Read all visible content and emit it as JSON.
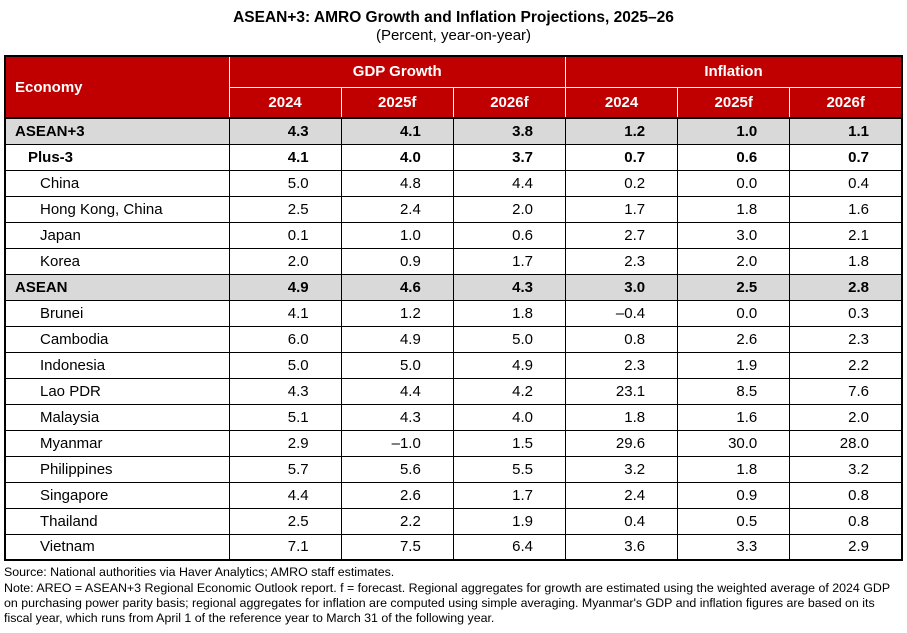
{
  "title": "ASEAN+3: AMRO Growth and Inflation Projections, 2025–26",
  "subtitle": "(Percent, year-on-year)",
  "colors": {
    "header_bg": "#C00000",
    "header_text": "#FFFFFF",
    "aggregate_row_bg": "#D9D9D9",
    "border": "#000000"
  },
  "table": {
    "corner_header": "Economy",
    "group_headers": [
      "GDP Growth",
      "Inflation"
    ],
    "year_headers": [
      "2024",
      "2025f",
      "2026f",
      "2024",
      "2025f",
      "2026f"
    ],
    "rows": [
      {
        "economy": "ASEAN+3",
        "style": "aggregate",
        "indent": 0,
        "values": [
          "4.3",
          "4.1",
          "3.8",
          "1.2",
          "1.0",
          "1.1"
        ]
      },
      {
        "economy": "Plus-3",
        "style": "subtotal",
        "indent": 1,
        "values": [
          "4.1",
          "4.0",
          "3.7",
          "0.7",
          "0.6",
          "0.7"
        ]
      },
      {
        "economy": "China",
        "style": "member",
        "indent": 2,
        "values": [
          "5.0",
          "4.8",
          "4.4",
          "0.2",
          "0.0",
          "0.4"
        ]
      },
      {
        "economy": "Hong Kong, China",
        "style": "member",
        "indent": 2,
        "values": [
          "2.5",
          "2.4",
          "2.0",
          "1.7",
          "1.8",
          "1.6"
        ]
      },
      {
        "economy": "Japan",
        "style": "member",
        "indent": 2,
        "values": [
          "0.1",
          "1.0",
          "0.6",
          "2.7",
          "3.0",
          "2.1"
        ]
      },
      {
        "economy": "Korea",
        "style": "member",
        "indent": 2,
        "values": [
          "2.0",
          "0.9",
          "1.7",
          "2.3",
          "2.0",
          "1.8"
        ]
      },
      {
        "economy": "ASEAN",
        "style": "aggregate",
        "indent": 0,
        "values": [
          "4.9",
          "4.6",
          "4.3",
          "3.0",
          "2.5",
          "2.8"
        ]
      },
      {
        "economy": "Brunei",
        "style": "member",
        "indent": 2,
        "values": [
          "4.1",
          "1.2",
          "1.8",
          "–0.4",
          "0.0",
          "0.3"
        ]
      },
      {
        "economy": "Cambodia",
        "style": "member",
        "indent": 2,
        "values": [
          "6.0",
          "4.9",
          "5.0",
          "0.8",
          "2.6",
          "2.3"
        ]
      },
      {
        "economy": "Indonesia",
        "style": "member",
        "indent": 2,
        "values": [
          "5.0",
          "5.0",
          "4.9",
          "2.3",
          "1.9",
          "2.2"
        ]
      },
      {
        "economy": "Lao PDR",
        "style": "member",
        "indent": 2,
        "values": [
          "4.3",
          "4.4",
          "4.2",
          "23.1",
          "8.5",
          "7.6"
        ]
      },
      {
        "economy": "Malaysia",
        "style": "member",
        "indent": 2,
        "values": [
          "5.1",
          "4.3",
          "4.0",
          "1.8",
          "1.6",
          "2.0"
        ]
      },
      {
        "economy": "Myanmar",
        "style": "member",
        "indent": 2,
        "values": [
          "2.9",
          "–1.0",
          "1.5",
          "29.6",
          "30.0",
          "28.0"
        ]
      },
      {
        "economy": "Philippines",
        "style": "member",
        "indent": 2,
        "values": [
          "5.7",
          "5.6",
          "5.5",
          "3.2",
          "1.8",
          "3.2"
        ]
      },
      {
        "economy": "Singapore",
        "style": "member",
        "indent": 2,
        "values": [
          "4.4",
          "2.6",
          "1.7",
          "2.4",
          "0.9",
          "0.8"
        ]
      },
      {
        "economy": "Thailand",
        "style": "member",
        "indent": 2,
        "values": [
          "2.5",
          "2.2",
          "1.9",
          "0.4",
          "0.5",
          "0.8"
        ]
      },
      {
        "economy": "Vietnam",
        "style": "member",
        "indent": 2,
        "values": [
          "7.1",
          "7.5",
          "6.4",
          "3.6",
          "3.3",
          "2.9"
        ]
      }
    ]
  },
  "footer": {
    "source": "Source: National authorities via Haver Analytics; AMRO staff estimates.",
    "note": "Note: AREO = ASEAN+3 Regional Economic Outlook report. f = forecast. Regional aggregates for growth are estimated using the weighted average of 2024 GDP on purchasing power parity basis; regional aggregates for inflation are computed using simple averaging. Myanmar's GDP and inflation figures are based on its fiscal year, which runs from April 1 of the reference year to March 31 of the following year."
  },
  "chart_data": {
    "type": "table",
    "title": "ASEAN+3: AMRO Growth and Inflation Projections, 2025–26",
    "subtitle": "(Percent, year-on-year)",
    "column_groups": [
      "GDP Growth",
      "Inflation"
    ],
    "columns": [
      "Economy",
      "GDP Growth 2024",
      "GDP Growth 2025f",
      "GDP Growth 2026f",
      "Inflation 2024",
      "Inflation 2025f",
      "Inflation 2026f"
    ],
    "rows": [
      [
        "ASEAN+3",
        4.3,
        4.1,
        3.8,
        1.2,
        1.0,
        1.1
      ],
      [
        "Plus-3",
        4.1,
        4.0,
        3.7,
        0.7,
        0.6,
        0.7
      ],
      [
        "China",
        5.0,
        4.8,
        4.4,
        0.2,
        0.0,
        0.4
      ],
      [
        "Hong Kong, China",
        2.5,
        2.4,
        2.0,
        1.7,
        1.8,
        1.6
      ],
      [
        "Japan",
        0.1,
        1.0,
        0.6,
        2.7,
        3.0,
        2.1
      ],
      [
        "Korea",
        2.0,
        0.9,
        1.7,
        2.3,
        2.0,
        1.8
      ],
      [
        "ASEAN",
        4.9,
        4.6,
        4.3,
        3.0,
        2.5,
        2.8
      ],
      [
        "Brunei",
        4.1,
        1.2,
        1.8,
        -0.4,
        0.0,
        0.3
      ],
      [
        "Cambodia",
        6.0,
        4.9,
        5.0,
        0.8,
        2.6,
        2.3
      ],
      [
        "Indonesia",
        5.0,
        5.0,
        4.9,
        2.3,
        1.9,
        2.2
      ],
      [
        "Lao PDR",
        4.3,
        4.4,
        4.2,
        23.1,
        8.5,
        7.6
      ],
      [
        "Malaysia",
        5.1,
        4.3,
        4.0,
        1.8,
        1.6,
        2.0
      ],
      [
        "Myanmar",
        2.9,
        -1.0,
        1.5,
        29.6,
        30.0,
        28.0
      ],
      [
        "Philippines",
        5.7,
        5.6,
        5.5,
        3.2,
        1.8,
        3.2
      ],
      [
        "Singapore",
        4.4,
        2.6,
        1.7,
        2.4,
        0.9,
        0.8
      ],
      [
        "Thailand",
        2.5,
        2.2,
        1.9,
        0.4,
        0.5,
        0.8
      ],
      [
        "Vietnam",
        7.1,
        7.5,
        6.4,
        3.6,
        3.3,
        2.9
      ]
    ]
  }
}
